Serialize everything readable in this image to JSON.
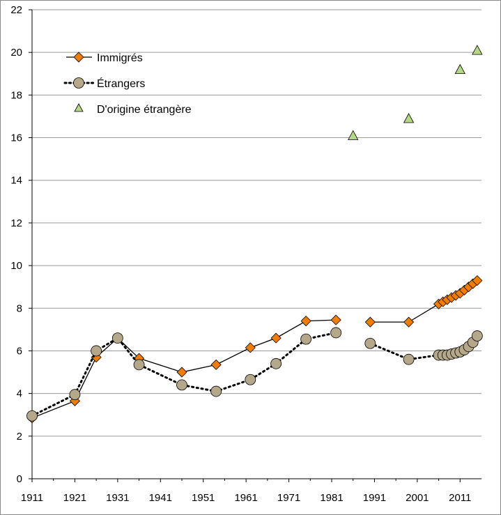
{
  "chart_data": {
    "type": "line",
    "title": "",
    "xlabel": "",
    "ylabel": "",
    "xlim": [
      1911,
      2016
    ],
    "ylim": [
      0,
      22
    ],
    "x_ticks": [
      "1911",
      "1921",
      "1931",
      "1941",
      "1951",
      "1961",
      "1971",
      "1981",
      "1991",
      "2001",
      "2011"
    ],
    "y_ticks": [
      "0",
      "2",
      "4",
      "6",
      "8",
      "10",
      "12",
      "14",
      "16",
      "18",
      "20",
      "22"
    ],
    "grid": true,
    "legend_position": "top-left",
    "series": [
      {
        "name": "Immigrés",
        "style": "solid-line-diamond",
        "color": "#f07d00",
        "segments": [
          [
            {
              "x": 1911,
              "y": 2.85
            },
            {
              "x": 1921,
              "y": 3.65
            },
            {
              "x": 1926,
              "y": 5.7
            },
            {
              "x": 1931,
              "y": 6.6
            },
            {
              "x": 1936,
              "y": 5.65
            },
            {
              "x": 1946,
              "y": 5.0
            },
            {
              "x": 1954,
              "y": 5.35
            },
            {
              "x": 1962,
              "y": 6.15
            },
            {
              "x": 1968,
              "y": 6.6
            },
            {
              "x": 1975,
              "y": 7.4
            },
            {
              "x": 1982,
              "y": 7.45
            }
          ],
          [
            {
              "x": 1990,
              "y": 7.35
            },
            {
              "x": 1999,
              "y": 7.35
            },
            {
              "x": 2006,
              "y": 8.2
            },
            {
              "x": 2007,
              "y": 8.3
            },
            {
              "x": 2008,
              "y": 8.4
            },
            {
              "x": 2009,
              "y": 8.5
            },
            {
              "x": 2010,
              "y": 8.6
            },
            {
              "x": 2011,
              "y": 8.7
            },
            {
              "x": 2012,
              "y": 8.85
            },
            {
              "x": 2013,
              "y": 9.0
            },
            {
              "x": 2014,
              "y": 9.15
            },
            {
              "x": 2015,
              "y": 9.3
            }
          ]
        ]
      },
      {
        "name": "Étrangers",
        "style": "dotted-line-circle",
        "color": "#b5a88a",
        "segments": [
          [
            {
              "x": 1911,
              "y": 2.95
            },
            {
              "x": 1921,
              "y": 3.95
            },
            {
              "x": 1926,
              "y": 6.0
            },
            {
              "x": 1931,
              "y": 6.6
            },
            {
              "x": 1936,
              "y": 5.35
            },
            {
              "x": 1946,
              "y": 4.4
            },
            {
              "x": 1954,
              "y": 4.1
            },
            {
              "x": 1962,
              "y": 4.65
            },
            {
              "x": 1968,
              "y": 5.4
            },
            {
              "x": 1975,
              "y": 6.55
            },
            {
              "x": 1982,
              "y": 6.85
            }
          ],
          [
            {
              "x": 1990,
              "y": 6.35
            },
            {
              "x": 1999,
              "y": 5.6
            },
            {
              "x": 2006,
              "y": 5.8
            },
            {
              "x": 2007,
              "y": 5.8
            },
            {
              "x": 2008,
              "y": 5.8
            },
            {
              "x": 2009,
              "y": 5.85
            },
            {
              "x": 2010,
              "y": 5.9
            },
            {
              "x": 2011,
              "y": 5.95
            },
            {
              "x": 2012,
              "y": 6.05
            },
            {
              "x": 2013,
              "y": 6.2
            },
            {
              "x": 2014,
              "y": 6.4
            },
            {
              "x": 2015,
              "y": 6.7
            }
          ]
        ]
      },
      {
        "name": "D'origine étrangère",
        "style": "triangle-markers",
        "color": "#b4d884",
        "segments": [
          [
            {
              "x": 1986,
              "y": 16.1
            },
            {
              "x": 1999,
              "y": 16.9
            },
            {
              "x": 2011,
              "y": 19.2
            },
            {
              "x": 2015,
              "y": 20.1
            }
          ]
        ]
      }
    ]
  }
}
